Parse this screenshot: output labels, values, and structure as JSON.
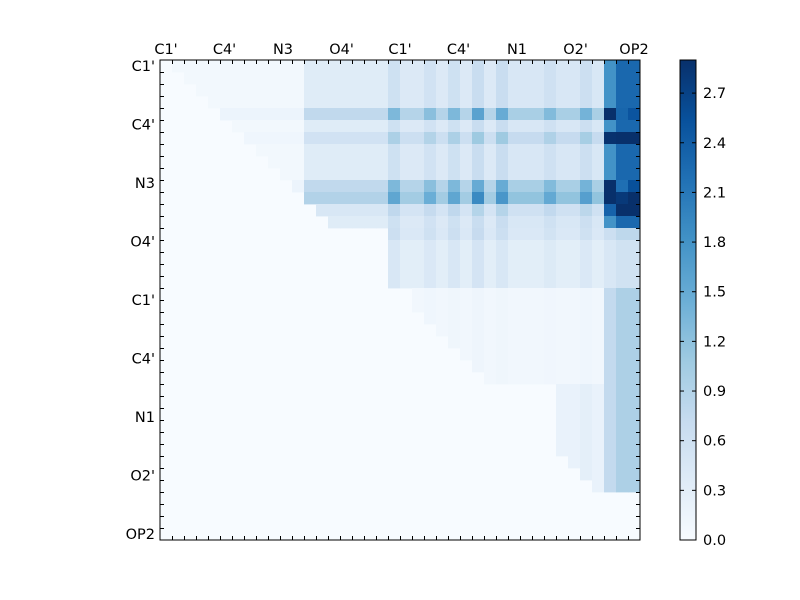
{
  "chart_data": {
    "type": "heatmap",
    "title": "",
    "xlabel": "",
    "ylabel": "",
    "colormap": "Blues",
    "color_low": "#f7fbff",
    "color_high": "#08306b",
    "tick_labels": [
      "C1'",
      "C4'",
      "N3",
      "O4'",
      "C1'",
      "C4'",
      "N1",
      "O2'",
      "OP2"
    ],
    "colorbar": {
      "range": [
        0.0,
        2.9
      ],
      "ticks": [
        "0.0",
        "0.3",
        "0.6",
        "0.9",
        "1.2",
        "1.5",
        "1.8",
        "2.1",
        "2.4",
        "2.7"
      ]
    },
    "grid_size": 40,
    "upper_triangle_only": true,
    "blocks": [
      {
        "rows": [
          0,
          14
        ],
        "cols": [
          12,
          19
        ],
        "value": 0.35
      },
      {
        "rows": [
          0,
          14
        ],
        "cols": [
          19,
          28
        ],
        "value": 0.4
      },
      {
        "rows": [
          0,
          14
        ],
        "cols": [
          28,
          37
        ],
        "value": 0.45
      },
      {
        "rows": [
          0,
          14
        ],
        "cols": [
          37,
          40
        ],
        "value": 1.2
      },
      {
        "rows": [
          14,
          19
        ],
        "cols": [
          19,
          40
        ],
        "value": 0.3
      },
      {
        "rows": [
          19,
          27
        ],
        "cols": [
          21,
          37
        ],
        "value": 0.08
      },
      {
        "rows": [
          19,
          36
        ],
        "cols": [
          37,
          40
        ],
        "value": 0.5
      },
      {
        "rows": [
          27,
          36
        ],
        "cols": [
          33,
          37
        ],
        "value": 0.2
      },
      {
        "rows": [
          0,
          12
        ],
        "cols": [
          1,
          12
        ],
        "value": 0.07
      }
    ],
    "hot_rows": [
      {
        "row": 4,
        "scale": 2.2
      },
      {
        "row": 6,
        "scale": 1.6
      },
      {
        "row": 10,
        "scale": 2.2
      },
      {
        "row": 11,
        "scale": 2.6
      },
      {
        "row": 12,
        "scale": 1.3
      },
      {
        "row": 14,
        "scale": 1.4
      }
    ],
    "hot_cols": [
      {
        "col": 19,
        "scale": 1.5
      },
      {
        "col": 22,
        "scale": 1.4
      },
      {
        "col": 24,
        "scale": 1.5
      },
      {
        "col": 26,
        "scale": 1.7
      },
      {
        "col": 28,
        "scale": 1.5
      },
      {
        "col": 32,
        "scale": 1.3
      },
      {
        "col": 35,
        "scale": 1.4
      },
      {
        "col": 37,
        "scale": 1.5
      },
      {
        "col": 38,
        "scale": 1.9
      },
      {
        "col": 39,
        "scale": 1.9
      }
    ],
    "peak_cells": [
      {
        "row": 11,
        "col": 39,
        "value": 2.9
      },
      {
        "row": 11,
        "col": 38,
        "value": 2.8
      },
      {
        "row": 10,
        "col": 39,
        "value": 2.55
      },
      {
        "row": 4,
        "col": 39,
        "value": 2.5
      },
      {
        "row": 4,
        "col": 38,
        "value": 2.3
      },
      {
        "row": 10,
        "col": 38,
        "value": 2.2
      },
      {
        "row": 11,
        "col": 26,
        "value": 1.9
      },
      {
        "row": 4,
        "col": 26,
        "value": 1.6
      }
    ]
  }
}
